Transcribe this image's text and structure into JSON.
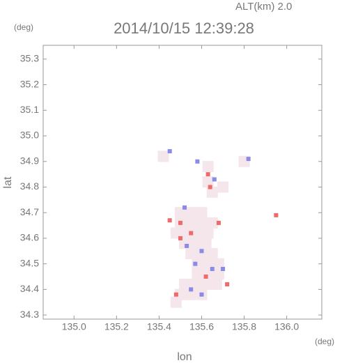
{
  "chart_data": {
    "type": "scatter",
    "title": "2014/10/15 12:39:28",
    "subtitle": "ALT(km) 2.0",
    "y_unit": "(deg)",
    "x_unit": "(deg)",
    "xlabel": "lon",
    "ylabel": "lat",
    "xlim": [
      134.855,
      136.165
    ],
    "ylim": [
      34.284,
      35.354
    ],
    "xticks": [
      {
        "value": 135.0,
        "label": "135.0"
      },
      135.2,
      135.4,
      135.6,
      135.8,
      {
        "value": 136.0,
        "label": "136.0"
      }
    ],
    "yticks": [
      34.3,
      34.4,
      34.5,
      34.6,
      34.7,
      34.8,
      34.9,
      {
        "value": 35.0,
        "label": "35.0"
      },
      35.1,
      35.2,
      35.3
    ],
    "series": [
      {
        "color": "#f4e6ea",
        "x": [
          135.5,
          135.55,
          135.6,
          135.5,
          135.55,
          135.6,
          135.65,
          135.48,
          135.53,
          135.58,
          135.63,
          135.52,
          135.57,
          135.62,
          135.55,
          135.6,
          135.65,
          135.58,
          135.63,
          135.68,
          135.58,
          135.63,
          135.68,
          135.52,
          135.57,
          135.62,
          135.67,
          135.5,
          135.55,
          135.6,
          135.48,
          135.63,
          135.65,
          135.63,
          135.7,
          135.42,
          135.8
        ],
        "y": [
          34.7,
          34.7,
          34.7,
          34.66,
          34.66,
          34.66,
          34.66,
          34.62,
          34.62,
          34.62,
          34.62,
          34.58,
          34.58,
          34.58,
          34.54,
          34.54,
          34.54,
          34.5,
          34.5,
          34.5,
          34.46,
          34.46,
          34.46,
          34.42,
          34.42,
          34.42,
          34.42,
          34.38,
          34.38,
          34.38,
          34.35,
          34.82,
          34.78,
          34.88,
          34.8,
          34.92,
          34.9
        ]
      },
      {
        "color": "#f06a6a",
        "x": [
          135.63,
          135.64,
          135.5,
          135.55,
          135.68,
          135.5,
          135.72,
          135.95,
          135.45,
          135.62,
          135.48
        ],
        "y": [
          34.85,
          34.8,
          34.66,
          34.62,
          34.66,
          34.6,
          34.42,
          34.69,
          34.67,
          34.45,
          34.38
        ]
      },
      {
        "color": "#8a8ae8",
        "x": [
          135.45,
          135.66,
          135.53,
          135.57,
          135.65,
          135.7,
          135.6,
          135.82,
          135.58,
          135.52,
          135.6,
          135.55
        ],
        "y": [
          34.94,
          34.83,
          34.57,
          34.5,
          34.48,
          34.48,
          34.38,
          34.91,
          34.9,
          34.72,
          34.55,
          34.4
        ]
      }
    ]
  }
}
